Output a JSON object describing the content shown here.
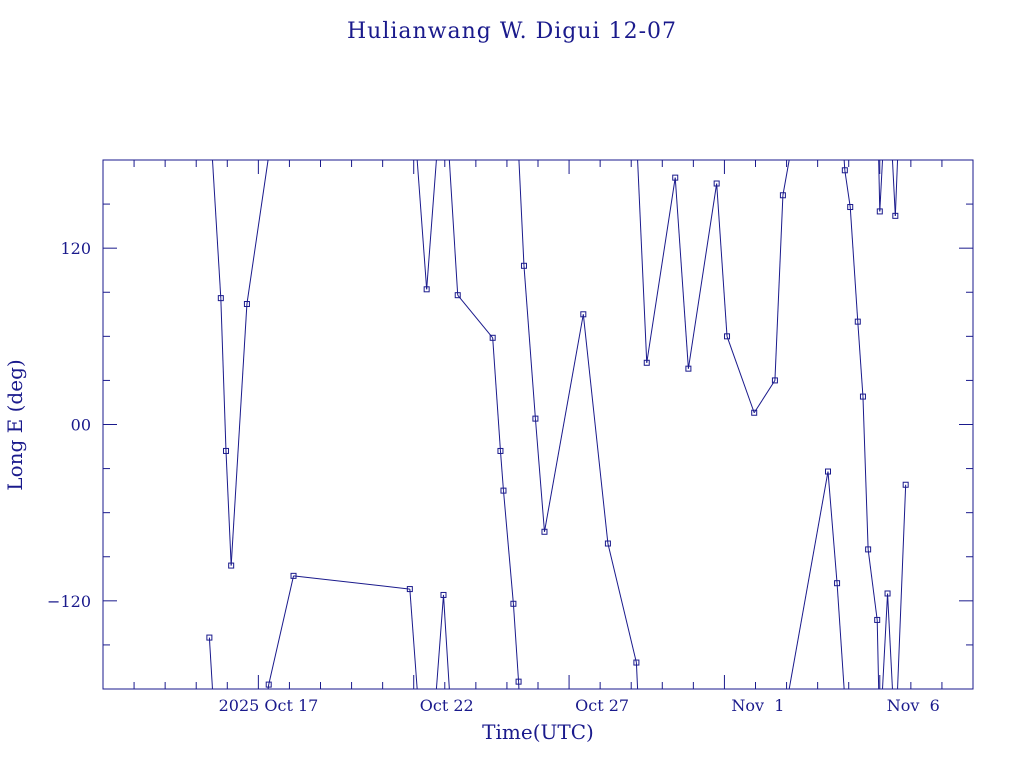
{
  "chart_data": {
    "type": "line",
    "title": "Hulianwang W. Digui 12-07",
    "xlabel": "Time(UTC)",
    "ylabel": "Long E (deg)",
    "x_unit": "day",
    "xlim": [
      "2025-10-12T00:00",
      "2025-11-09T00:00"
    ],
    "ylim": [
      -180,
      180
    ],
    "y_wraps": true,
    "y_ticks": [
      -120,
      0,
      120
    ],
    "y_tick_labels": [
      "−120",
      "00",
      "120"
    ],
    "x_ticks": [
      "2025-10-17",
      "2025-10-22",
      "2025-10-27",
      "2025-11-01",
      "2025-11-06"
    ],
    "x_tick_labels": [
      "2025 Oct 17",
      "Oct 22",
      "Oct 27",
      "Nov  1",
      "Nov  6"
    ],
    "grid": false,
    "color": "#1a1a8c",
    "series": [
      {
        "marker": "square",
        "x": [
          "2025-10-15T10:10",
          "2025-10-15T19:00",
          "2025-10-15T23:00",
          "2025-10-16T03:00",
          "2025-10-16T15:10",
          "2025-10-17T08:00",
          "2025-10-18T03:10",
          "2025-10-21T21:00",
          "2025-10-22T10:00",
          "2025-10-22T23:00",
          "2025-10-23T10:00",
          "2025-10-24T13:00",
          "2025-10-24T19:00",
          "2025-10-24T21:20",
          "2025-10-25T05:00",
          "2025-10-25T09:00",
          "2025-10-25T13:10",
          "2025-10-25T22:00",
          "2025-10-26T05:00",
          "2025-10-27T11:00",
          "2025-10-28T06:00",
          "2025-10-29T04:00",
          "2025-10-29T12:00",
          "2025-10-30T10:00",
          "2025-10-30T20:10",
          "2025-10-31T18:00",
          "2025-11-01T02:00",
          "2025-11-01T23:00",
          "2025-11-02T15:00",
          "2025-11-02T21:10",
          "2025-11-04T08:00",
          "2025-11-04T15:00",
          "2025-11-04T21:00",
          "2025-11-05T01:10",
          "2025-11-05T07:00",
          "2025-11-05T11:00",
          "2025-11-05T22:00",
          "2025-11-05T15:00",
          "2025-11-06T00:00",
          "2025-11-06T06:00",
          "2025-11-06T12:00",
          "2025-11-06T20:00"
        ],
        "y": [
          -145,
          86,
          -18,
          -96,
          82,
          -177,
          -103,
          -112,
          92,
          -116,
          88,
          59,
          -18,
          -45,
          -122,
          -175,
          108,
          4,
          -73,
          75,
          -81,
          -162,
          42,
          168,
          38,
          164,
          60,
          8,
          30,
          156,
          -32,
          -108,
          173,
          148,
          70,
          19,
          -133,
          -85,
          145,
          -115,
          142,
          -41
        ],
        "x_ordered": [
          "2025-10-15T10:10",
          "2025-10-15T19:00",
          "2025-10-15T23:00",
          "2025-10-16T03:00",
          "2025-10-16T15:10",
          "2025-10-17T08:00",
          "2025-10-18T03:10",
          "2025-10-21T21:00",
          "2025-10-22T10:00",
          "2025-10-22T23:00",
          "2025-10-23T10:00",
          "2025-10-24T13:00",
          "2025-10-24T19:00",
          "2025-10-24T21:20",
          "2025-10-25T05:00",
          "2025-10-25T09:00",
          "2025-10-25T13:10",
          "2025-10-25T22:00",
          "2025-10-26T05:00",
          "2025-10-27T11:00",
          "2025-10-28T06:00",
          "2025-10-29T04:00",
          "2025-10-29T12:00",
          "2025-10-30T10:00",
          "2025-10-30T20:10",
          "2025-10-31T18:00",
          "2025-11-01T02:00",
          "2025-11-01T23:00",
          "2025-11-02T15:00",
          "2025-11-02T21:10",
          "2025-11-04T08:00",
          "2025-11-04T15:00",
          "2025-11-04T21:00",
          "2025-11-05T01:10",
          "2025-11-05T07:00",
          "2025-11-05T11:00",
          "2025-11-05T15:00",
          "2025-11-05T22:00",
          "2025-11-06T00:00",
          "2025-11-06T06:00",
          "2025-11-06T12:00",
          "2025-11-06T20:00"
        ],
        "y_ordered": [
          -145,
          86,
          -18,
          -96,
          82,
          -177,
          -103,
          -112,
          92,
          -116,
          88,
          59,
          -18,
          -45,
          -122,
          -175,
          108,
          4,
          -73,
          75,
          -81,
          -162,
          42,
          168,
          38,
          164,
          60,
          8,
          30,
          156,
          -32,
          -108,
          173,
          148,
          70,
          19,
          -85,
          -133,
          145,
          -115,
          142,
          -41
        ]
      }
    ]
  }
}
